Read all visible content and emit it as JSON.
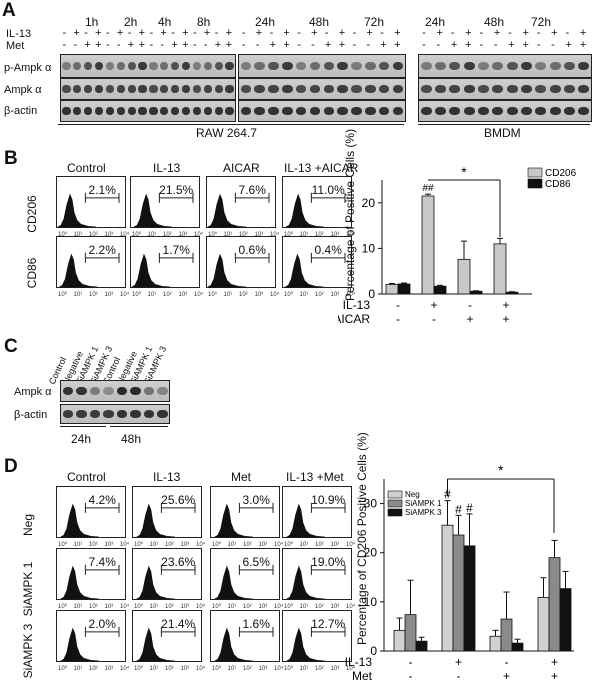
{
  "panels": {
    "a": "A",
    "b": "B",
    "c": "C",
    "d": "D"
  },
  "panelA": {
    "time_labels_raw": [
      "1h",
      "2h",
      "4h",
      "8h",
      "24h",
      "48h",
      "72h"
    ],
    "time_labels_bmdm": [
      "24h",
      "48h",
      "72h"
    ],
    "treatments": [
      "IL-13",
      "Met"
    ],
    "blot_labels": [
      "p-Ampk α",
      "Ampk α",
      "β-actin"
    ],
    "cell_lines": [
      "RAW 264.7",
      "BMDM"
    ],
    "il13_signs": [
      "-",
      "+",
      "-",
      "+"
    ],
    "met_signs": [
      "-",
      "-",
      "+",
      "+"
    ]
  },
  "panelB": {
    "columns": [
      "Control",
      "IL-13",
      "AICAR",
      "IL-13 +AICAR"
    ],
    "rows": [
      "CD206",
      "CD86"
    ],
    "percents": [
      [
        "2.1%",
        "21.5%",
        "7.6%",
        "11.0%"
      ],
      [
        "2.2%",
        "1.7%",
        "0.6%",
        "0.4%"
      ]
    ],
    "bracket_x_ticks": [
      "10⁰",
      "10¹",
      "10²",
      "10³",
      "10⁴"
    ],
    "bracket_y_ticks": [
      "0",
      "10",
      "20"
    ],
    "factor_labels": [
      "IL-13",
      "AICAR"
    ],
    "il13_signs": [
      "-",
      "+",
      "-",
      "+"
    ],
    "aicar_signs": [
      "-",
      "-",
      "+",
      "+"
    ],
    "sig_marks": {
      "hash": "##",
      "star": "*"
    }
  },
  "panelC": {
    "lane_labels": [
      "Control",
      "Negative",
      "SiAMPK 1",
      "SiAMPK 3",
      "Control",
      "Negative",
      "SiAMPK 1",
      "SiAMPK 3"
    ],
    "blot_labels": [
      "Ampk α",
      "β-actin"
    ],
    "times": [
      "24h",
      "48h"
    ]
  },
  "panelD": {
    "columns": [
      "Control",
      "IL-13",
      "Met",
      "IL-13 +Met"
    ],
    "rows": [
      "Neg",
      "SiAMPK 1",
      "SiAMPK 3"
    ],
    "percents": [
      [
        "4.2%",
        "25.6%",
        "3.0%",
        "10.9%"
      ],
      [
        "7.4%",
        "23.6%",
        "6.5%",
        "19.0%"
      ],
      [
        "2.0%",
        "21.4%",
        "1.6%",
        "12.7%"
      ]
    ],
    "factor_labels": [
      "IL-13",
      "Met"
    ],
    "il13_signs": [
      "-",
      "+",
      "-",
      "+"
    ],
    "met_signs": [
      "-",
      "-",
      "+",
      "+"
    ],
    "sig_marks": {
      "hash": "#",
      "star": "*"
    },
    "y_ticks": [
      "0",
      "10",
      "20",
      "30"
    ]
  },
  "chart_data": [
    {
      "type": "bar",
      "title": "",
      "ylabel": "Percentage of Positive Cells (%)",
      "xlabel": "",
      "categories": [
        "Control",
        "IL-13",
        "AICAR",
        "IL-13 + AICAR"
      ],
      "series": [
        {
          "name": "CD206",
          "values": [
            2.1,
            21.5,
            7.6,
            11.0
          ],
          "errors": [
            0.2,
            0.4,
            4.0,
            1.2
          ]
        },
        {
          "name": "CD86",
          "values": [
            2.2,
            1.7,
            0.6,
            0.4
          ],
          "errors": [
            0.2,
            0.2,
            0.1,
            0.1
          ]
        }
      ],
      "ylim": [
        0,
        25
      ],
      "colors": {
        "CD206": "#c8c8c8",
        "CD86": "#111111"
      }
    },
    {
      "type": "bar",
      "title": "",
      "ylabel": "Percentage of CD206 Positive Cells (%)",
      "xlabel": "",
      "categories": [
        "Control",
        "IL-13",
        "Met",
        "IL-13 + Met"
      ],
      "series": [
        {
          "name": "Neg",
          "values": [
            4.2,
            25.6,
            3.0,
            10.9
          ],
          "errors": [
            2.5,
            5.0,
            1.2,
            4.0
          ]
        },
        {
          "name": "SiAMPK 1",
          "values": [
            7.4,
            23.6,
            6.5,
            19.0
          ],
          "errors": [
            7.0,
            4.0,
            5.5,
            3.5
          ]
        },
        {
          "name": "SiAMPK 3",
          "values": [
            2.0,
            21.4,
            1.6,
            12.7
          ],
          "errors": [
            0.8,
            6.5,
            0.8,
            3.5
          ]
        }
      ],
      "ylim": [
        0,
        35
      ],
      "colors": {
        "Neg": "#d0d0d0",
        "SiAMPK 1": "#8a8a8a",
        "SiAMPK 3": "#111111"
      }
    }
  ]
}
